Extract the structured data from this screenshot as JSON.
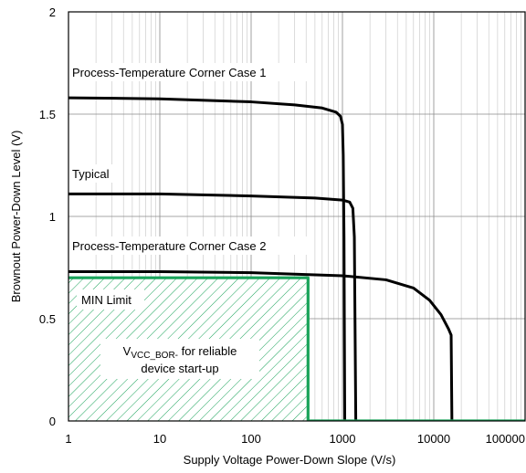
{
  "chart_data": {
    "type": "line",
    "xlabel": "Supply Voltage Power-Down Slope (V/s)",
    "ylabel": "Brownout Power-Down Level (V)",
    "xscale": "log",
    "xlim": [
      1,
      100000
    ],
    "ylim": [
      0,
      2
    ],
    "x_ticks": [
      "1",
      "10",
      "100",
      "1000",
      "10000",
      "100000"
    ],
    "y_ticks": [
      "0",
      "0.5",
      "1",
      "1.5",
      "2"
    ],
    "grid": "major and minor vertical (log), major horizontal",
    "series": [
      {
        "name": "Process-Temperature Corner Case 1",
        "color": "#000000",
        "points": [
          [
            1,
            1.58
          ],
          [
            10,
            1.575
          ],
          [
            100,
            1.56
          ],
          [
            300,
            1.545
          ],
          [
            600,
            1.53
          ],
          [
            850,
            1.51
          ],
          [
            950,
            1.49
          ],
          [
            1000,
            1.45
          ],
          [
            1020,
            1.3
          ],
          [
            1040,
            0.9
          ],
          [
            1060,
            0.0
          ]
        ]
      },
      {
        "name": "Typical",
        "color": "#000000",
        "points": [
          [
            1,
            1.11
          ],
          [
            10,
            1.11
          ],
          [
            100,
            1.1
          ],
          [
            500,
            1.09
          ],
          [
            1000,
            1.08
          ],
          [
            1200,
            1.07
          ],
          [
            1300,
            1.04
          ],
          [
            1350,
            0.9
          ],
          [
            1400,
            0.0
          ]
        ]
      },
      {
        "name": "Process-Temperature Corner Case 2",
        "color": "#000000",
        "points": [
          [
            1,
            0.73
          ],
          [
            10,
            0.73
          ],
          [
            100,
            0.725
          ],
          [
            1000,
            0.71
          ],
          [
            3000,
            0.69
          ],
          [
            6000,
            0.65
          ],
          [
            9000,
            0.59
          ],
          [
            12000,
            0.52
          ],
          [
            14500,
            0.45
          ],
          [
            15500,
            0.42
          ],
          [
            15800,
            0.0
          ]
        ]
      },
      {
        "name": "MIN Limit",
        "color": "#1aa35a",
        "points": [
          [
            1,
            0.7
          ],
          [
            420,
            0.7
          ],
          [
            420,
            0.0
          ],
          [
            100000,
            0.0
          ]
        ]
      }
    ],
    "min_limit_region": {
      "x_from": 1,
      "x_to": 420,
      "y_from": 0,
      "y_to": 0.7,
      "fill": "hatched",
      "color": "#1aa35a"
    },
    "annotations": {
      "case1": "Process-Temperature Corner Case 1",
      "typical": "Typical",
      "case2": "Process-Temperature Corner Case 2",
      "min_limit": "MIN Limit",
      "vcc_main": "V",
      "vcc_sub": "VCC_BOR-",
      "vcc_rest": " for reliable",
      "vcc_line2": "device start-up"
    }
  }
}
